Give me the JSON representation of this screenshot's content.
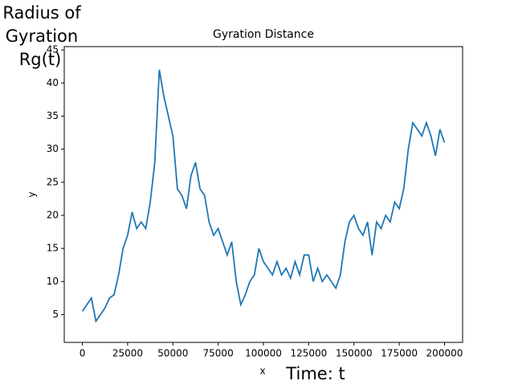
{
  "chart_data": {
    "type": "line",
    "title": "Gyration Distance",
    "xlabel": "x",
    "ylabel": "y",
    "annotations": [
      "Radius of",
      "Gyration",
      "Rg(t)",
      "Time: t"
    ],
    "series": [
      {
        "color": "#1f77b4",
        "x": [
          0,
          2500,
          5000,
          7500,
          10000,
          12500,
          15000,
          17500,
          20000,
          22500,
          25000,
          27500,
          30000,
          32500,
          35000,
          37500,
          40000,
          42500,
          45000,
          47500,
          50000,
          52500,
          55000,
          57500,
          60000,
          62500,
          65000,
          67500,
          70000,
          72500,
          75000,
          77500,
          80000,
          82500,
          85000,
          87500,
          90000,
          92500,
          95000,
          97500,
          100000,
          102500,
          105000,
          107500,
          110000,
          112500,
          115000,
          117500,
          120000,
          122500,
          125000,
          127500,
          130000,
          132500,
          135000,
          137500,
          140000,
          142500,
          145000,
          147500,
          150000,
          152500,
          155000,
          157500,
          160000,
          162500,
          165000,
          167500,
          170000,
          172500,
          175000,
          177500,
          180000,
          182500,
          185000,
          187500,
          190000,
          192500,
          195000,
          197500,
          200000
        ],
        "values": [
          5.5,
          6.5,
          7.5,
          4,
          5,
          6,
          7.5,
          8,
          11,
          15,
          17,
          20.5,
          18,
          19,
          18,
          22,
          28,
          42,
          38,
          35,
          32,
          24,
          23,
          21,
          26,
          28,
          24,
          23,
          19,
          17,
          18,
          16,
          14,
          16,
          10,
          6.5,
          8,
          10,
          11,
          15,
          13,
          12,
          11,
          13,
          11,
          12,
          10.5,
          13,
          11,
          14,
          14,
          10,
          12,
          10,
          11,
          10,
          9,
          11,
          16,
          19,
          20,
          18,
          17,
          19,
          14,
          19,
          18,
          20,
          19,
          22,
          21,
          24,
          30,
          34,
          33,
          32,
          34,
          32,
          29,
          33,
          31
        ]
      }
    ],
    "xlim": [
      -10000,
      210000
    ],
    "ylim": [
      0.8,
      45.5
    ],
    "xticks": [
      0,
      25000,
      50000,
      75000,
      100000,
      125000,
      150000,
      175000,
      200000
    ],
    "yticks": [
      5,
      10,
      15,
      20,
      25,
      30,
      35,
      40,
      45
    ]
  }
}
